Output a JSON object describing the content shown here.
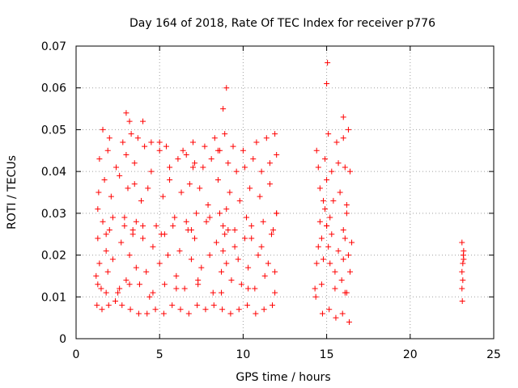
{
  "chart_data": {
    "type": "scatter",
    "title": "Day 164 of 2018, Rate Of TEC Index for receiver p776",
    "xlabel": "GPS time / hours",
    "ylabel": "ROTI / TECUs",
    "xlim": [
      0,
      25
    ],
    "ylim": [
      0,
      0.07
    ],
    "xticks": [
      0,
      5,
      10,
      15,
      20,
      25
    ],
    "xtick_labels": [
      "0",
      "5",
      "10",
      "15",
      "20",
      "25"
    ],
    "yticks": [
      0,
      0.01,
      0.02,
      0.03,
      0.04,
      0.05,
      0.06,
      0.07
    ],
    "ytick_labels": [
      "0",
      "0.01",
      "0.02",
      "0.03",
      "0.04",
      "0.05",
      "0.06",
      "0.07"
    ],
    "grid": true,
    "marker": "plus",
    "color": "#ff0000",
    "series": [
      {
        "name": "p776",
        "x": [
          1.2,
          1.3,
          1.4,
          1.5,
          1.6,
          1.8,
          1.9,
          2.0,
          2.2,
          2.5,
          2.7,
          2.9,
          3.0,
          3.2,
          3.4,
          3.6,
          3.8,
          4.0,
          4.2,
          4.4,
          4.6,
          5.0,
          5.1,
          5.3,
          5.5,
          5.8,
          6.0,
          6.2,
          6.5,
          6.7,
          6.9,
          7.1,
          7.3,
          7.5,
          7.8,
          8.0,
          8.2,
          8.4,
          8.6,
          8.7,
          8.8,
          8.9,
          9.0,
          9.1,
          9.3,
          9.5,
          9.7,
          9.9,
          10.1,
          10.3,
          10.5,
          10.7,
          10.9,
          11.1,
          11.3,
          11.5,
          11.7,
          11.9,
          12.0,
          14.3,
          14.4,
          14.5,
          14.6,
          14.7,
          14.8,
          14.9,
          15.0,
          15.1,
          15.2,
          15.3,
          15.5,
          15.7,
          15.9,
          16.0,
          16.1,
          16.2,
          16.3,
          16.4,
          16.5,
          23.1,
          23.15,
          23.2,
          1.35,
          1.7,
          2.1,
          2.6,
          3.1,
          3.5,
          3.9,
          4.3,
          5.2,
          5.6,
          6.3,
          6.8,
          7.4,
          7.9,
          8.5,
          9.2,
          9.8,
          10.4,
          11.0,
          11.6,
          14.6,
          15.0,
          15.4,
          15.8,
          16.2,
          23.1,
          1.25,
          1.55,
          1.95,
          2.35,
          2.75,
          3.25,
          3.75,
          4.25,
          4.75,
          5.25,
          5.75,
          6.25,
          6.75,
          7.25,
          7.75,
          8.25,
          8.75,
          9.25,
          9.75,
          10.25,
          10.75,
          11.25,
          11.75,
          14.35,
          14.75,
          15.15,
          15.55,
          15.95,
          16.35,
          23.12,
          1.4,
          1.9,
          2.4,
          3.0,
          3.5,
          4.1,
          4.5,
          5.0,
          5.6,
          6.1,
          6.6,
          7.1,
          7.6,
          8.1,
          8.6,
          9.1,
          9.6,
          10.1,
          10.6,
          11.1,
          11.6,
          12.0,
          14.5,
          14.9,
          15.3,
          15.7,
          16.1,
          16.4,
          23.18,
          1.6,
          2.0,
          2.8,
          3.3,
          3.7,
          4.5,
          5.4,
          6.4,
          7.0,
          7.7,
          8.3,
          8.9,
          9.4,
          10.0,
          10.8,
          11.4,
          11.9,
          14.4,
          15.1,
          15.6,
          16.0,
          16.3,
          23.1,
          1.3,
          2.2,
          3.6,
          4.8,
          5.9,
          6.6,
          7.2,
          8.0,
          9.0,
          10.2,
          11.2,
          12.0,
          14.8,
          15.2,
          16.2,
          23.2,
          1.8,
          2.9,
          3.4,
          4.0,
          5.3,
          6.9,
          8.8,
          9.5,
          10.5,
          11.8,
          15.0,
          16.0,
          3.0,
          3.2,
          8.8,
          9.0,
          15.0,
          15.05,
          16.0,
          4.0,
          5.0,
          7.0,
          8.5,
          1.3,
          1.8,
          2.6,
          3.2,
          4.6,
          6.0,
          7.3,
          8.7,
          10.3,
          11.9,
          14.7,
          15.5,
          16.1,
          23.15
        ],
        "y": [
          0.015,
          0.024,
          0.018,
          0.012,
          0.028,
          0.021,
          0.016,
          0.026,
          0.019,
          0.011,
          0.023,
          0.029,
          0.014,
          0.02,
          0.025,
          0.017,
          0.013,
          0.027,
          0.016,
          0.01,
          0.022,
          0.018,
          0.025,
          0.013,
          0.02,
          0.027,
          0.015,
          0.021,
          0.012,
          0.026,
          0.019,
          0.024,
          0.014,
          0.017,
          0.028,
          0.02,
          0.011,
          0.023,
          0.03,
          0.016,
          0.021,
          0.025,
          0.018,
          0.026,
          0.014,
          0.022,
          0.019,
          0.013,
          0.024,
          0.017,
          0.027,
          0.012,
          0.02,
          0.022,
          0.015,
          0.018,
          0.025,
          0.016,
          0.03,
          0.012,
          0.018,
          0.022,
          0.028,
          0.024,
          0.019,
          0.031,
          0.027,
          0.022,
          0.018,
          0.025,
          0.016,
          0.021,
          0.014,
          0.019,
          0.024,
          0.011,
          0.02,
          0.016,
          0.023,
          0.012,
          0.018,
          0.021,
          0.035,
          0.038,
          0.034,
          0.039,
          0.036,
          0.037,
          0.033,
          0.036,
          0.034,
          0.038,
          0.035,
          0.037,
          0.036,
          0.032,
          0.038,
          0.035,
          0.033,
          0.036,
          0.034,
          0.037,
          0.036,
          0.038,
          0.033,
          0.035,
          0.032,
          0.023,
          0.008,
          0.007,
          0.008,
          0.009,
          0.008,
          0.007,
          0.006,
          0.006,
          0.007,
          0.006,
          0.008,
          0.007,
          0.006,
          0.008,
          0.007,
          0.008,
          0.007,
          0.006,
          0.007,
          0.008,
          0.006,
          0.007,
          0.008,
          0.01,
          0.006,
          0.007,
          0.005,
          0.006,
          0.004,
          0.009,
          0.043,
          0.045,
          0.041,
          0.044,
          0.042,
          0.046,
          0.04,
          0.045,
          0.041,
          0.043,
          0.044,
          0.042,
          0.041,
          0.043,
          0.045,
          0.042,
          0.04,
          0.041,
          0.043,
          0.04,
          0.042,
          0.044,
          0.041,
          0.043,
          0.04,
          0.042,
          0.041,
          0.04,
          0.02,
          0.05,
          0.048,
          0.047,
          0.049,
          0.048,
          0.047,
          0.046,
          0.045,
          0.047,
          0.046,
          0.048,
          0.049,
          0.046,
          0.045,
          0.047,
          0.048,
          0.049,
          0.045,
          0.049,
          0.047,
          0.048,
          0.05,
          0.016,
          0.031,
          0.029,
          0.028,
          0.027,
          0.029,
          0.028,
          0.03,
          0.029,
          0.031,
          0.029,
          0.028,
          0.03,
          0.033,
          0.029,
          0.03,
          0.019,
          0.025,
          0.027,
          0.026,
          0.024,
          0.025,
          0.026,
          0.027,
          0.026,
          0.024,
          0.026,
          0.027,
          0.026,
          0.054,
          0.052,
          0.055,
          0.06,
          0.061,
          0.066,
          0.053,
          0.052,
          0.047,
          0.041,
          0.045,
          0.013,
          0.011,
          0.012,
          0.013,
          0.011,
          0.012,
          0.013,
          0.011,
          0.012,
          0.011,
          0.013,
          0.012,
          0.011,
          0.014
        ]
      }
    ]
  }
}
